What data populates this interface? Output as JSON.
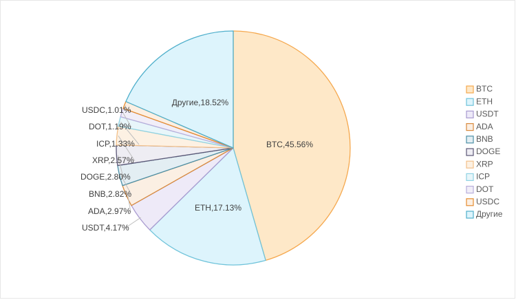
{
  "chart_data": {
    "type": "pie",
    "title": "",
    "legend_position": "right",
    "slices": [
      {
        "label": "BTC",
        "value": 45.56,
        "display": "BTC,45.56%",
        "fill": "#FEE8C8",
        "stroke": "#F5A84E"
      },
      {
        "label": "ETH",
        "value": 17.13,
        "display": "ETH,17.13%",
        "fill": "#DDF4FC",
        "stroke": "#6FC3DA"
      },
      {
        "label": "USDT",
        "value": 4.17,
        "display": "USDT,4.17%",
        "fill": "#EEEAF8",
        "stroke": "#A99BD0"
      },
      {
        "label": "ADA",
        "value": 2.97,
        "display": "ADA,2.97%",
        "fill": "#FBEFE3",
        "stroke": "#D88A3E"
      },
      {
        "label": "BNB",
        "value": 2.82,
        "display": "BNB,2.82%",
        "fill": "#E3EEF3",
        "stroke": "#4C8FA6"
      },
      {
        "label": "DOGE",
        "value": 2.8,
        "display": "DOGE,2.80%",
        "fill": "#EEEDF3",
        "stroke": "#5B5776"
      },
      {
        "label": "XRP",
        "value": 2.57,
        "display": "XRP,2.57%",
        "fill": "#FDF1E3",
        "stroke": "#F2C08A"
      },
      {
        "label": "ICP",
        "value": 1.33,
        "display": "ICP,1.33%",
        "fill": "#E8F6FA",
        "stroke": "#8FD3E3"
      },
      {
        "label": "DOT",
        "value": 1.19,
        "display": "DOT,1.19%",
        "fill": "#F1EEF8",
        "stroke": "#B8AEDB"
      },
      {
        "label": "USDC",
        "value": 1.01,
        "display": "USDC,1.01%",
        "fill": "#FCEFE2",
        "stroke": "#E58B2E"
      },
      {
        "label": "Другие",
        "value": 18.52,
        "display": "Другие,18.52%",
        "fill": "#DDF4FC",
        "stroke": "#4FAFCB"
      }
    ]
  }
}
